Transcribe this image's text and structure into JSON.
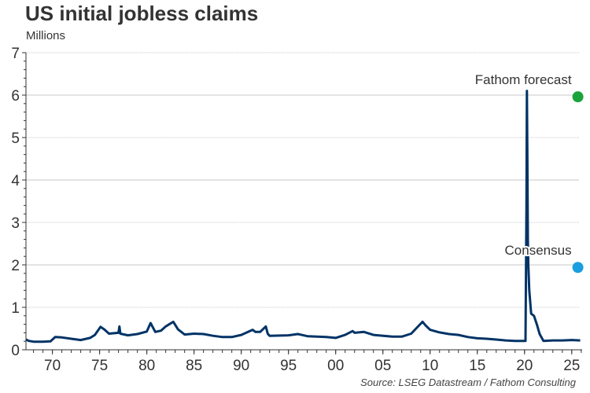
{
  "chart_data": {
    "type": "line",
    "title": "US initial jobless claims",
    "ylabel": "Millions",
    "source": "Source: LSEG Datastream / Fathom Consulting",
    "xlim": [
      1967.2,
      2026.1
    ],
    "ylim": [
      0,
      7
    ],
    "yticks": [
      0,
      1,
      2,
      3,
      4,
      5,
      6,
      7
    ],
    "xticks": [
      {
        "value": 1970,
        "label": "70"
      },
      {
        "value": 1975,
        "label": "75"
      },
      {
        "value": 1980,
        "label": "80"
      },
      {
        "value": 1985,
        "label": "85"
      },
      {
        "value": 1990,
        "label": "90"
      },
      {
        "value": 1995,
        "label": "95"
      },
      {
        "value": 2000,
        "label": "00"
      },
      {
        "value": 2005,
        "label": "05"
      },
      {
        "value": 2010,
        "label": "10"
      },
      {
        "value": 2015,
        "label": "15"
      },
      {
        "value": 2020,
        "label": "20"
      },
      {
        "value": 2025,
        "label": "25"
      }
    ],
    "grid": true,
    "line_color": "#003366",
    "series": [
      {
        "x": [
          1967.2,
          1967.5,
          1968,
          1969,
          1969.8,
          1970.3,
          1971,
          1972,
          1973,
          1974,
          1974.5,
          1975.1,
          1975.5,
          1976,
          1977,
          1977.1,
          1977.2,
          1978,
          1979,
          1980,
          1980.4,
          1980.9,
          1981.5,
          1982,
          1982.8,
          1983.3,
          1984,
          1985,
          1986,
          1987,
          1988,
          1989,
          1990,
          1991.2,
          1991.5,
          1992,
          1992.6,
          1992.8,
          1993,
          1995,
          1996,
          1997,
          1999,
          2000,
          2001,
          2001.8,
          2002,
          2003,
          2004,
          2006,
          2007,
          2008,
          2009.2,
          2009.5,
          2010,
          2011,
          2012,
          2013,
          2014,
          2015,
          2016,
          2017,
          2018,
          2019,
          2020.1,
          2020.2,
          2020.25,
          2020.3,
          2020.35,
          2020.4,
          2020.5,
          2020.7,
          2021,
          2021.3,
          2021.6,
          2022,
          2023,
          2024,
          2025,
          2025.9
        ],
        "y": [
          0.24,
          0.21,
          0.19,
          0.19,
          0.2,
          0.3,
          0.29,
          0.26,
          0.23,
          0.28,
          0.35,
          0.54,
          0.48,
          0.38,
          0.4,
          0.55,
          0.38,
          0.34,
          0.37,
          0.43,
          0.63,
          0.42,
          0.45,
          0.55,
          0.66,
          0.48,
          0.36,
          0.38,
          0.37,
          0.33,
          0.3,
          0.3,
          0.35,
          0.47,
          0.42,
          0.42,
          0.55,
          0.38,
          0.33,
          0.34,
          0.37,
          0.32,
          0.3,
          0.28,
          0.35,
          0.44,
          0.4,
          0.42,
          0.35,
          0.31,
          0.31,
          0.38,
          0.66,
          0.58,
          0.47,
          0.41,
          0.37,
          0.35,
          0.3,
          0.27,
          0.26,
          0.24,
          0.22,
          0.21,
          0.21,
          3.3,
          6.1,
          4.5,
          2.6,
          2.0,
          1.4,
          0.85,
          0.8,
          0.6,
          0.37,
          0.21,
          0.22,
          0.22,
          0.23,
          0.22
        ]
      }
    ],
    "markers": [
      {
        "label": "Fathom forecast",
        "x": 2025.9,
        "y": 5.96,
        "color": "#1aa33a"
      },
      {
        "label": "Consensus",
        "x": 2025.9,
        "y": 1.94,
        "color": "#1a9ee0"
      }
    ]
  }
}
